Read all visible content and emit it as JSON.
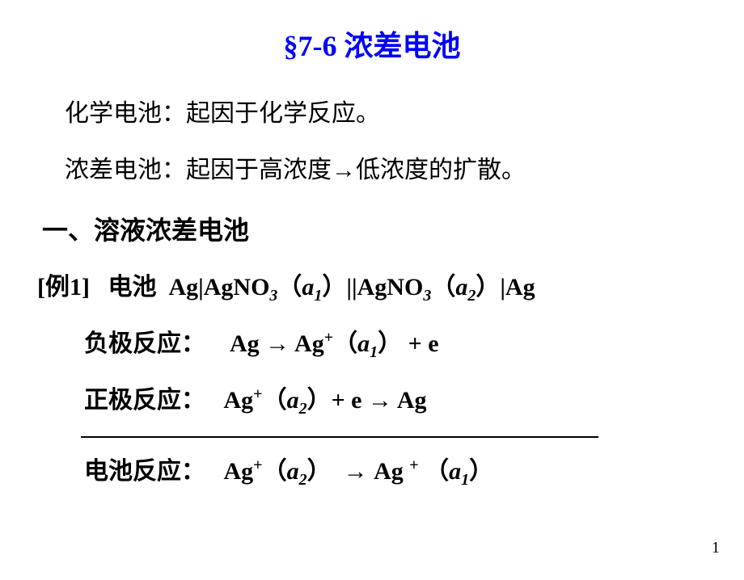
{
  "title": "§7-6 浓差电池",
  "intro1": "化学电池：起因于化学反应。",
  "intro2": "浓差电池：起因于高浓度→低浓度的扩散。",
  "section1": "一、溶液浓差电池",
  "example": {
    "label": "[例1]",
    "prefix": "电池",
    "cell_left": "Ag|AgNO",
    "sub3a": "3",
    "a1_open": "（",
    "a1_var": "a",
    "a1_sub": "1",
    "a1_close": "）",
    "bridge": "||AgNO",
    "sub3b": "3",
    "a2_open": "（",
    "a2_var": "a",
    "a2_sub": "2",
    "a2_close": "）",
    "cell_right": "|Ag"
  },
  "neg": {
    "label": "负极反应：",
    "lhs": "Ag",
    "arrow": " → ",
    "r1": "Ag",
    "sup": "+",
    "open": "（",
    "var": "a",
    "sub": "1",
    "close": "）",
    "tail": " + e"
  },
  "pos": {
    "label": "正极反应：",
    "l1": "Ag",
    "sup": "+",
    "open": "（",
    "var": "a",
    "sub": "2",
    "close": "）",
    "mid": "+ e",
    "arrow": " → ",
    "rhs": "Ag"
  },
  "cell": {
    "label": "电池反应：",
    "l1": "Ag",
    "sup1": "+",
    "open1": "（",
    "var1": "a",
    "sub1": "2",
    "close1": "）",
    "arrow": " → ",
    "r1": "Ag",
    "space": " ",
    "sup2": "+",
    "open2": " （",
    "var2": "a",
    "sub2": "1",
    "close2": "）"
  },
  "pagenum": "1",
  "colors": {
    "title": "#0000ff",
    "text": "#000000",
    "bg": "#ffffff"
  }
}
